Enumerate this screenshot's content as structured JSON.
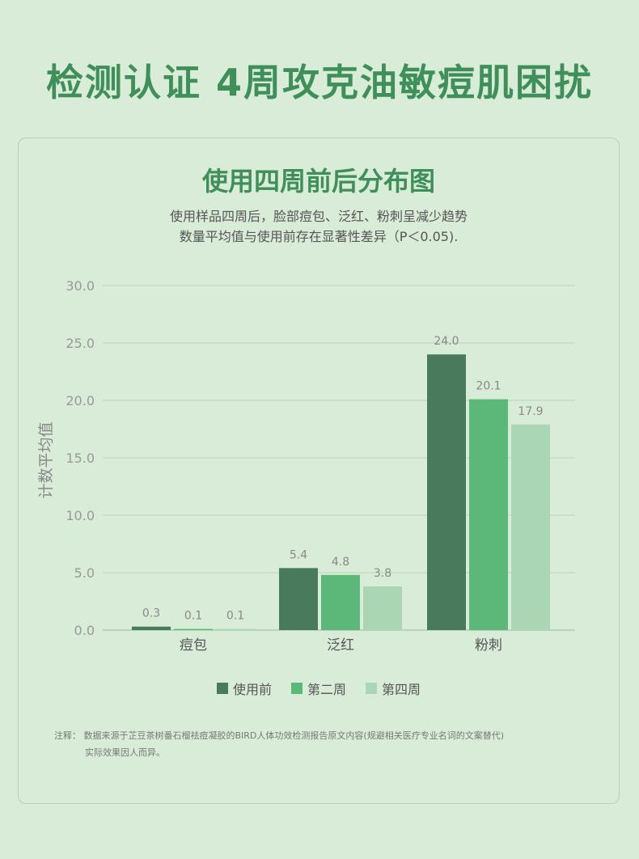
{
  "headline": "检测认证 4周攻克油敏痘肌困扰",
  "panel": {
    "title": "使用四周前后分布图",
    "subtitle_line1": "使用样品四周后，脸部痘包、泛红、粉刺呈减少趋势",
    "subtitle_line2": "数量平均值与使用前存在显著性差异（P＜0.05)."
  },
  "chart_data": {
    "type": "bar",
    "ylabel": "计数平均值",
    "ylim": [
      0,
      30
    ],
    "y_ticks": [
      "0.0",
      "5.0",
      "10.0",
      "15.0",
      "20.0",
      "25.0",
      "30.0"
    ],
    "categories": [
      "痘包",
      "泛红",
      "粉刺"
    ],
    "series": [
      {
        "name": "使用前",
        "values": [
          0.3,
          5.4,
          24.0
        ],
        "labels": [
          "0.3",
          "5.4",
          "24.0"
        ],
        "color": "#4a7a5c"
      },
      {
        "name": "第二周",
        "values": [
          0.1,
          4.8,
          20.1
        ],
        "labels": [
          "0.1",
          "4.8",
          "20.1"
        ],
        "color": "#5cb878"
      },
      {
        "name": "第四周",
        "values": [
          0.1,
          3.8,
          17.9
        ],
        "labels": [
          "0.1",
          "3.8",
          "17.9"
        ],
        "color": "#aad6b6"
      }
    ],
    "grid": true,
    "legend_position": "bottom"
  },
  "legend": [
    {
      "label": "使用前",
      "color": "#4a7a5c"
    },
    {
      "label": "第二周",
      "color": "#5cb878"
    },
    {
      "label": "第四周",
      "color": "#aad6b6"
    }
  ],
  "note": {
    "line1": "注释：  数据来源于芷豆茶树番石榴祛痘凝胶的BIRD人体功效检测报告原文内容(规避相关医疗专业名词的文案替代)",
    "line2": "实际效果因人而异。"
  }
}
